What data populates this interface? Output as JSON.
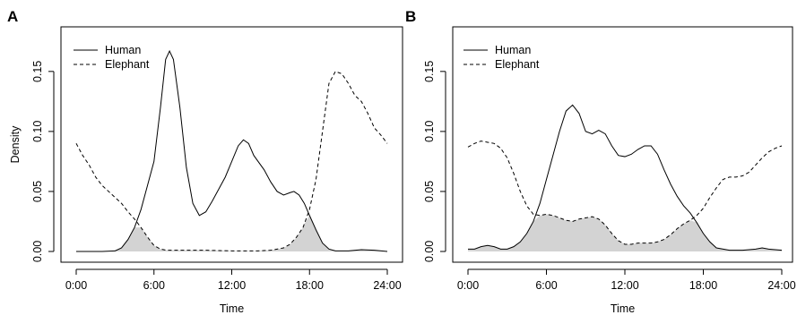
{
  "chart_data": [
    {
      "type": "line",
      "panel_label": "A",
      "xlabel": "Time",
      "ylabel": "Density",
      "xlim": [
        0,
        24
      ],
      "ylim": [
        0,
        0.17
      ],
      "x_ticks": [
        0,
        6,
        12,
        18,
        24
      ],
      "x_tick_labels": [
        "0:00",
        "6:00",
        "12:00",
        "18:00",
        "24:00"
      ],
      "y_ticks": [
        0,
        0.05,
        0.1,
        0.15
      ],
      "y_tick_labels": [
        "0.00",
        "0.05",
        "0.10",
        "0.15"
      ],
      "legend_position": "top-left",
      "overlap_shaded": true,
      "overlap_fill": "#d3d3d3",
      "series": [
        {
          "name": "Human",
          "line_style": "solid",
          "points": [
            [
              0,
              0.0
            ],
            [
              2,
              0.0
            ],
            [
              3.0,
              0.0005
            ],
            [
              3.5,
              0.003
            ],
            [
              4,
              0.01
            ],
            [
              4.5,
              0.02
            ],
            [
              5,
              0.035
            ],
            [
              5.5,
              0.055
            ],
            [
              6,
              0.075
            ],
            [
              6.5,
              0.12
            ],
            [
              6.9,
              0.16
            ],
            [
              7.2,
              0.167
            ],
            [
              7.5,
              0.16
            ],
            [
              8,
              0.12
            ],
            [
              8.5,
              0.07
            ],
            [
              9,
              0.04
            ],
            [
              9.5,
              0.03
            ],
            [
              10,
              0.033
            ],
            [
              10.5,
              0.042
            ],
            [
              11,
              0.052
            ],
            [
              11.5,
              0.062
            ],
            [
              12,
              0.075
            ],
            [
              12.5,
              0.088
            ],
            [
              12.9,
              0.093
            ],
            [
              13.3,
              0.09
            ],
            [
              13.7,
              0.08
            ],
            [
              14.5,
              0.068
            ],
            [
              15,
              0.058
            ],
            [
              15.5,
              0.05
            ],
            [
              16,
              0.047
            ],
            [
              16.5,
              0.049
            ],
            [
              16.8,
              0.05
            ],
            [
              17.2,
              0.047
            ],
            [
              17.6,
              0.04
            ],
            [
              18,
              0.03
            ],
            [
              18.5,
              0.018
            ],
            [
              19,
              0.007
            ],
            [
              19.5,
              0.002
            ],
            [
              20,
              0.0005
            ],
            [
              21,
              0.0005
            ],
            [
              22,
              0.0015
            ],
            [
              23,
              0.001
            ],
            [
              24,
              0.0
            ]
          ]
        },
        {
          "name": "Elephant",
          "line_style": "dashed",
          "points": [
            [
              0,
              0.09
            ],
            [
              0.5,
              0.08
            ],
            [
              1,
              0.072
            ],
            [
              1.5,
              0.062
            ],
            [
              2,
              0.055
            ],
            [
              2.5,
              0.05
            ],
            [
              3,
              0.045
            ],
            [
              3.5,
              0.04
            ],
            [
              4,
              0.033
            ],
            [
              4.5,
              0.027
            ],
            [
              5,
              0.02
            ],
            [
              5.5,
              0.012
            ],
            [
              6,
              0.005
            ],
            [
              6.5,
              0.002
            ],
            [
              7,
              0.001
            ],
            [
              8,
              0.001
            ],
            [
              10,
              0.001
            ],
            [
              12,
              0.0005
            ],
            [
              14,
              0.0005
            ],
            [
              15,
              0.001
            ],
            [
              16,
              0.003
            ],
            [
              16.5,
              0.006
            ],
            [
              17,
              0.012
            ],
            [
              17.5,
              0.02
            ],
            [
              18,
              0.035
            ],
            [
              18.5,
              0.06
            ],
            [
              19,
              0.1
            ],
            [
              19.5,
              0.14
            ],
            [
              20,
              0.15
            ],
            [
              20.5,
              0.148
            ],
            [
              21,
              0.14
            ],
            [
              21.5,
              0.13
            ],
            [
              22,
              0.125
            ],
            [
              22.5,
              0.115
            ],
            [
              23,
              0.103
            ],
            [
              23.5,
              0.097
            ],
            [
              24,
              0.09
            ]
          ]
        }
      ]
    },
    {
      "type": "line",
      "panel_label": "B",
      "xlabel": "Time",
      "ylabel": "",
      "xlim": [
        0,
        24
      ],
      "ylim": [
        0,
        0.17
      ],
      "x_ticks": [
        0,
        6,
        12,
        18,
        24
      ],
      "x_tick_labels": [
        "0:00",
        "6:00",
        "12:00",
        "18:00",
        "24:00"
      ],
      "y_ticks": [
        0,
        0.05,
        0.1,
        0.15
      ],
      "y_tick_labels": [
        "0.00",
        "0.05",
        "0.10",
        "0.15"
      ],
      "legend_position": "top-left",
      "overlap_shaded": true,
      "overlap_fill": "#d3d3d3",
      "series": [
        {
          "name": "Human",
          "line_style": "solid",
          "points": [
            [
              0,
              0.002
            ],
            [
              0.5,
              0.002
            ],
            [
              1,
              0.004
            ],
            [
              1.5,
              0.005
            ],
            [
              2,
              0.004
            ],
            [
              2.5,
              0.002
            ],
            [
              3,
              0.002
            ],
            [
              3.5,
              0.004
            ],
            [
              4,
              0.008
            ],
            [
              4.5,
              0.015
            ],
            [
              5,
              0.025
            ],
            [
              5.5,
              0.04
            ],
            [
              6,
              0.06
            ],
            [
              6.5,
              0.08
            ],
            [
              7,
              0.1
            ],
            [
              7.5,
              0.117
            ],
            [
              8,
              0.122
            ],
            [
              8.5,
              0.115
            ],
            [
              9,
              0.1
            ],
            [
              9.5,
              0.098
            ],
            [
              10,
              0.101
            ],
            [
              10.5,
              0.098
            ],
            [
              11,
              0.088
            ],
            [
              11.5,
              0.08
            ],
            [
              12,
              0.079
            ],
            [
              12.5,
              0.081
            ],
            [
              13,
              0.085
            ],
            [
              13.5,
              0.088
            ],
            [
              14,
              0.088
            ],
            [
              14.5,
              0.081
            ],
            [
              15,
              0.068
            ],
            [
              15.5,
              0.056
            ],
            [
              16,
              0.046
            ],
            [
              16.5,
              0.038
            ],
            [
              17,
              0.032
            ],
            [
              17.5,
              0.024
            ],
            [
              18,
              0.015
            ],
            [
              18.5,
              0.008
            ],
            [
              19,
              0.003
            ],
            [
              20,
              0.001
            ],
            [
              21,
              0.001
            ],
            [
              22,
              0.002
            ],
            [
              22.5,
              0.003
            ],
            [
              23,
              0.002
            ],
            [
              24,
              0.001
            ]
          ]
        },
        {
          "name": "Elephant",
          "line_style": "dashed",
          "points": [
            [
              0,
              0.087
            ],
            [
              0.5,
              0.09
            ],
            [
              1,
              0.092
            ],
            [
              1.5,
              0.091
            ],
            [
              2,
              0.09
            ],
            [
              2.5,
              0.086
            ],
            [
              3,
              0.078
            ],
            [
              3.5,
              0.065
            ],
            [
              4,
              0.05
            ],
            [
              4.5,
              0.038
            ],
            [
              5,
              0.031
            ],
            [
              5.5,
              0.03
            ],
            [
              6,
              0.031
            ],
            [
              6.5,
              0.03
            ],
            [
              7,
              0.028
            ],
            [
              7.5,
              0.026
            ],
            [
              8,
              0.025
            ],
            [
              8.5,
              0.027
            ],
            [
              9,
              0.028
            ],
            [
              9.5,
              0.029
            ],
            [
              10,
              0.027
            ],
            [
              10.5,
              0.022
            ],
            [
              11,
              0.015
            ],
            [
              11.5,
              0.009
            ],
            [
              12,
              0.006
            ],
            [
              12.5,
              0.006
            ],
            [
              13,
              0.007
            ],
            [
              14,
              0.007
            ],
            [
              14.5,
              0.008
            ],
            [
              15,
              0.01
            ],
            [
              15.5,
              0.014
            ],
            [
              16,
              0.019
            ],
            [
              16.5,
              0.023
            ],
            [
              17,
              0.026
            ],
            [
              17.5,
              0.03
            ],
            [
              18,
              0.036
            ],
            [
              18.5,
              0.045
            ],
            [
              19,
              0.053
            ],
            [
              19.5,
              0.06
            ],
            [
              20,
              0.062
            ],
            [
              20.5,
              0.062
            ],
            [
              21,
              0.063
            ],
            [
              21.5,
              0.066
            ],
            [
              22,
              0.072
            ],
            [
              22.5,
              0.078
            ],
            [
              23,
              0.083
            ],
            [
              23.5,
              0.086
            ],
            [
              24,
              0.088
            ]
          ]
        }
      ]
    }
  ]
}
